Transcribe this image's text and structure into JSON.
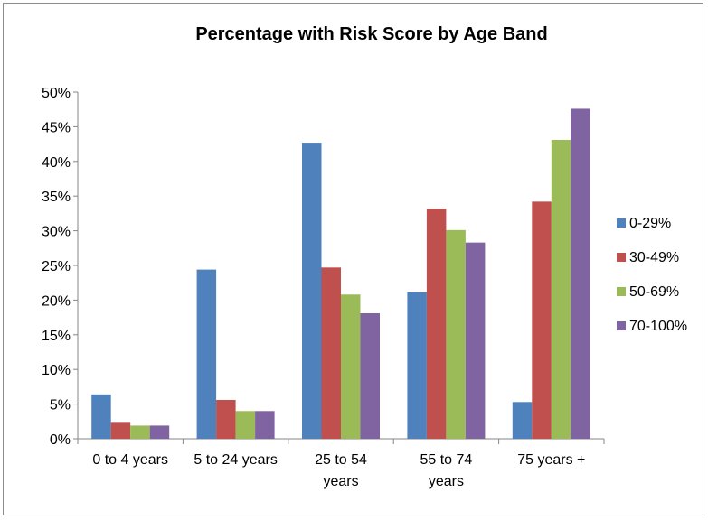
{
  "chart_data": {
    "type": "bar",
    "title": "Percentage with Risk Score by Age Band",
    "xlabel": "",
    "ylabel": "",
    "categories": [
      "0 to 4 years",
      "5 to 24 years",
      "25 to 54 years",
      "55 to 74 years",
      "75 years +"
    ],
    "category_lines": [
      [
        "0 to 4 years"
      ],
      [
        "5 to 24 years"
      ],
      [
        "25 to 54",
        "years"
      ],
      [
        "55 to 74",
        "years"
      ],
      [
        "75 years +"
      ]
    ],
    "ylim": [
      0,
      50
    ],
    "yticks": [
      0,
      5,
      10,
      15,
      20,
      25,
      30,
      35,
      40,
      45,
      50
    ],
    "ytick_labels": [
      "0%",
      "5%",
      "10%",
      "15%",
      "20%",
      "25%",
      "30%",
      "35%",
      "40%",
      "45%",
      "50%"
    ],
    "grid": false,
    "legend_position": "right",
    "series": [
      {
        "name": "0-29%",
        "color": "#4f81bd",
        "values": [
          6.4,
          24.4,
          42.7,
          21.1,
          5.3
        ]
      },
      {
        "name": "30-49%",
        "color": "#c0504d",
        "values": [
          2.3,
          5.6,
          24.7,
          33.2,
          34.2
        ]
      },
      {
        "name": "50-69%",
        "color": "#9bbb59",
        "values": [
          1.9,
          4.0,
          20.8,
          30.1,
          43.1
        ]
      },
      {
        "name": "70-100%",
        "color": "#8064a2",
        "values": [
          1.9,
          4.0,
          18.1,
          28.3,
          47.6
        ]
      }
    ]
  }
}
